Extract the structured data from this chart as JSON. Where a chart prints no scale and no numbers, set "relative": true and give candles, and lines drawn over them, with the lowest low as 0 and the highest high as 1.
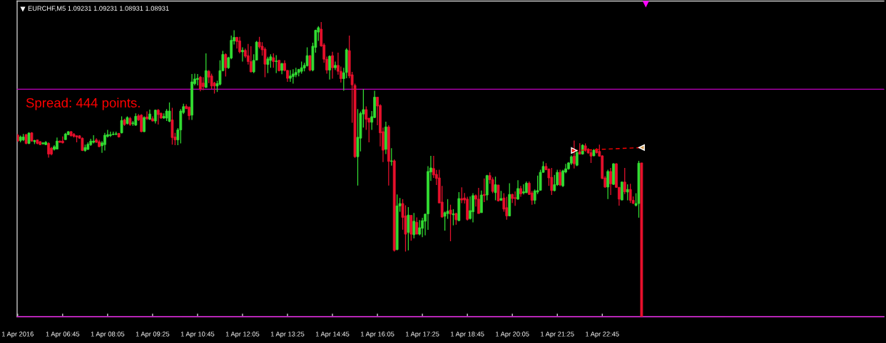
{
  "chart_data": {
    "type": "candlestick",
    "title": "EURCHF,M5 1.09231 1.09231 1.08931 1.08931",
    "relative": true,
    "tick_labels": "x",
    "annotations": [
      "Spread: 444 points."
    ],
    "xlim": [
      "2016-04-01T05:24",
      "2016-04-02T07:06"
    ],
    "xticks": [
      {
        "value": "2016-04-01T05:25",
        "label": "1 Apr 2016"
      },
      {
        "value": "2016-04-01T06:45",
        "label": "1 Apr 06:45"
      },
      {
        "value": "2016-04-01T08:05",
        "label": "1 Apr 08:05"
      },
      {
        "value": "2016-04-01T09:25",
        "label": "1 Apr 09:25"
      },
      {
        "value": "2016-04-01T10:45",
        "label": "1 Apr 10:45"
      },
      {
        "value": "2016-04-01T12:05",
        "label": "1 Apr 12:05"
      },
      {
        "value": "2016-04-01T13:25",
        "label": "1 Apr 13:25"
      },
      {
        "value": "2016-04-01T14:45",
        "label": "1 Apr 14:45"
      },
      {
        "value": "2016-04-01T16:05",
        "label": "1 Apr 16:05"
      },
      {
        "value": "2016-04-01T17:25",
        "label": "1 Apr 17:25"
      },
      {
        "value": "2016-04-01T18:45",
        "label": "1 Apr 18:45"
      },
      {
        "value": "2016-04-01T20:05",
        "label": "1 Apr 20:05"
      },
      {
        "value": "2016-04-01T21:25",
        "label": "1 Apr 21:25"
      },
      {
        "value": "2016-04-01T22:45",
        "label": "1 Apr 22:45"
      }
    ],
    "ref_lines": [
      {
        "axis": "y",
        "value": 0.772,
        "color": "#c000c0"
      },
      {
        "axis": "y",
        "value": 0,
        "color": "#c000c0"
      }
    ],
    "series": [
      {
        "type": "line",
        "x": [
          "2016-04-01T21:55",
          "2016-04-01T23:55"
        ],
        "values": [
          0.564,
          0.574
        ],
        "color": "#ff0000",
        "colors": [
          "#ff0000",
          "#d4a05a"
        ],
        "line_style": "dashed",
        "marker": "triangle"
      }
    ],
    "x": [
      "2016-04-01T05:25",
      "2016-04-01T05:30",
      "2016-04-01T05:35",
      "2016-04-01T05:40",
      "2016-04-01T05:45",
      "2016-04-01T05:50",
      "2016-04-01T05:55",
      "2016-04-01T06:00",
      "2016-04-01T06:05",
      "2016-04-01T06:10",
      "2016-04-01T06:15",
      "2016-04-01T06:20",
      "2016-04-01T06:25",
      "2016-04-01T06:30",
      "2016-04-01T06:35",
      "2016-04-01T06:40",
      "2016-04-01T06:45",
      "2016-04-01T06:50",
      "2016-04-01T06:55",
      "2016-04-01T07:00",
      "2016-04-01T07:05",
      "2016-04-01T07:10",
      "2016-04-01T07:15",
      "2016-04-01T07:20",
      "2016-04-01T07:25",
      "2016-04-01T07:30",
      "2016-04-01T07:35",
      "2016-04-01T07:40",
      "2016-04-01T07:45",
      "2016-04-01T07:50",
      "2016-04-01T07:55",
      "2016-04-01T08:00",
      "2016-04-01T08:05",
      "2016-04-01T08:10",
      "2016-04-01T08:15",
      "2016-04-01T08:20",
      "2016-04-01T08:25",
      "2016-04-01T08:30",
      "2016-04-01T08:35",
      "2016-04-01T08:40",
      "2016-04-01T08:45",
      "2016-04-01T08:50",
      "2016-04-01T08:55",
      "2016-04-01T09:00",
      "2016-04-01T09:05",
      "2016-04-01T09:10",
      "2016-04-01T09:15",
      "2016-04-01T09:20",
      "2016-04-01T09:25",
      "2016-04-01T09:30",
      "2016-04-01T09:35",
      "2016-04-01T09:40",
      "2016-04-01T09:45",
      "2016-04-01T09:50",
      "2016-04-01T09:55",
      "2016-04-01T10:00",
      "2016-04-01T10:05",
      "2016-04-01T10:10",
      "2016-04-01T10:15",
      "2016-04-01T10:20",
      "2016-04-01T10:25",
      "2016-04-01T10:30",
      "2016-04-01T10:35",
      "2016-04-01T10:40",
      "2016-04-01T10:45",
      "2016-04-01T10:50",
      "2016-04-01T10:55",
      "2016-04-01T11:00",
      "2016-04-01T11:05",
      "2016-04-01T11:10",
      "2016-04-01T11:15",
      "2016-04-01T11:20",
      "2016-04-01T11:25",
      "2016-04-01T11:30",
      "2016-04-01T11:35",
      "2016-04-01T11:40",
      "2016-04-01T11:45",
      "2016-04-01T11:50",
      "2016-04-01T11:55",
      "2016-04-01T12:00",
      "2016-04-01T12:05",
      "2016-04-01T12:10",
      "2016-04-01T12:15",
      "2016-04-01T12:20",
      "2016-04-01T12:25",
      "2016-04-01T12:30",
      "2016-04-01T12:35",
      "2016-04-01T12:40",
      "2016-04-01T12:45",
      "2016-04-01T12:50",
      "2016-04-01T12:55",
      "2016-04-01T13:00",
      "2016-04-01T13:05",
      "2016-04-01T13:10",
      "2016-04-01T13:15",
      "2016-04-01T13:20",
      "2016-04-01T13:25",
      "2016-04-01T13:30",
      "2016-04-01T13:35",
      "2016-04-01T13:40",
      "2016-04-01T13:45",
      "2016-04-01T13:50",
      "2016-04-01T13:55",
      "2016-04-01T14:00",
      "2016-04-01T14:05",
      "2016-04-01T14:10",
      "2016-04-01T14:15",
      "2016-04-01T14:20",
      "2016-04-01T14:25",
      "2016-04-01T14:30",
      "2016-04-01T14:35",
      "2016-04-01T14:40",
      "2016-04-01T14:45",
      "2016-04-01T14:50",
      "2016-04-01T14:55",
      "2016-04-01T15:00",
      "2016-04-01T15:05",
      "2016-04-01T15:10",
      "2016-04-01T15:15",
      "2016-04-01T15:20",
      "2016-04-01T15:25",
      "2016-04-01T15:30",
      "2016-04-01T15:35",
      "2016-04-01T15:40",
      "2016-04-01T15:45",
      "2016-04-01T15:50",
      "2016-04-01T15:55",
      "2016-04-01T16:00",
      "2016-04-01T16:05",
      "2016-04-01T16:10",
      "2016-04-01T16:15",
      "2016-04-01T16:20",
      "2016-04-01T16:25",
      "2016-04-01T16:30",
      "2016-04-01T16:35",
      "2016-04-01T16:40",
      "2016-04-01T16:45",
      "2016-04-01T16:50",
      "2016-04-01T16:55",
      "2016-04-01T17:00",
      "2016-04-01T17:05",
      "2016-04-01T17:10",
      "2016-04-01T17:15",
      "2016-04-01T17:20",
      "2016-04-01T17:25",
      "2016-04-01T17:30",
      "2016-04-01T17:35",
      "2016-04-01T17:40",
      "2016-04-01T17:45",
      "2016-04-01T17:50",
      "2016-04-01T17:55",
      "2016-04-01T18:00",
      "2016-04-01T18:05",
      "2016-04-01T18:10",
      "2016-04-01T18:15",
      "2016-04-01T18:20",
      "2016-04-01T18:25",
      "2016-04-01T18:30",
      "2016-04-01T18:35",
      "2016-04-01T18:40",
      "2016-04-01T18:45",
      "2016-04-01T18:50",
      "2016-04-01T18:55",
      "2016-04-01T19:00",
      "2016-04-01T19:05",
      "2016-04-01T19:10",
      "2016-04-01T19:15",
      "2016-04-01T19:20",
      "2016-04-01T19:25",
      "2016-04-01T19:30",
      "2016-04-01T19:35",
      "2016-04-01T19:40",
      "2016-04-01T19:45",
      "2016-04-01T19:50",
      "2016-04-01T19:55",
      "2016-04-01T20:00",
      "2016-04-01T20:05",
      "2016-04-01T20:10",
      "2016-04-01T20:15",
      "2016-04-01T20:20",
      "2016-04-01T20:25",
      "2016-04-01T20:30",
      "2016-04-01T20:35",
      "2016-04-01T20:40",
      "2016-04-01T20:45",
      "2016-04-01T20:50",
      "2016-04-01T20:55",
      "2016-04-01T21:00",
      "2016-04-01T21:05",
      "2016-04-01T21:10",
      "2016-04-01T21:15",
      "2016-04-01T21:20",
      "2016-04-01T21:25",
      "2016-04-01T21:30",
      "2016-04-01T21:35",
      "2016-04-01T21:40",
      "2016-04-01T21:45",
      "2016-04-01T21:50",
      "2016-04-01T21:55",
      "2016-04-01T22:00",
      "2016-04-01T22:05",
      "2016-04-01T22:10",
      "2016-04-01T22:15",
      "2016-04-01T22:20",
      "2016-04-01T22:25",
      "2016-04-01T22:30",
      "2016-04-01T22:35",
      "2016-04-01T22:40",
      "2016-04-01T22:45",
      "2016-04-01T22:50",
      "2016-04-01T22:55",
      "2016-04-01T23:00",
      "2016-04-01T23:05",
      "2016-04-01T23:10",
      "2016-04-01T23:15",
      "2016-04-01T23:20",
      "2016-04-01T23:25",
      "2016-04-01T23:30",
      "2016-04-01T23:35",
      "2016-04-01T23:40",
      "2016-04-01T23:45",
      "2016-04-01T23:50",
      "2016-04-01T23:55"
    ],
    "ohlc": [
      [
        0.616,
        0.62,
        0.594,
        0.596
      ],
      [
        0.598,
        0.615,
        0.592,
        0.61
      ],
      [
        0.6,
        0.62,
        0.596,
        0.61
      ],
      [
        0.618,
        0.62,
        0.585,
        0.588
      ],
      [
        0.588,
        0.626,
        0.586,
        0.623
      ],
      [
        0.624,
        0.626,
        0.594,
        0.596
      ],
      [
        0.594,
        0.6,
        0.586,
        0.598
      ],
      [
        0.6,
        0.601,
        0.585,
        0.588
      ],
      [
        0.594,
        0.596,
        0.582,
        0.584
      ],
      [
        0.587,
        0.592,
        0.584,
        0.59
      ],
      [
        0.584,
        0.596,
        0.582,
        0.592
      ],
      [
        0.588,
        0.592,
        0.54,
        0.552
      ],
      [
        0.572,
        0.576,
        0.548,
        0.552
      ],
      [
        0.568,
        0.582,
        0.564,
        0.577
      ],
      [
        0.569,
        0.608,
        0.568,
        0.596
      ],
      [
        0.596,
        0.598,
        0.59,
        0.592
      ],
      [
        0.596,
        0.612,
        0.588,
        0.59
      ],
      [
        0.601,
        0.624,
        0.6,
        0.62
      ],
      [
        0.618,
        0.63,
        0.616,
        0.628
      ],
      [
        0.628,
        0.63,
        0.612,
        0.614
      ],
      [
        0.619,
        0.623,
        0.608,
        0.612
      ],
      [
        0.614,
        0.615,
        0.592,
        0.61
      ],
      [
        0.614,
        0.616,
        0.604,
        0.606
      ],
      [
        0.606,
        0.608,
        0.562,
        0.564
      ],
      [
        0.564,
        0.584,
        0.56,
        0.574
      ],
      [
        0.568,
        0.592,
        0.566,
        0.585
      ],
      [
        0.584,
        0.604,
        0.58,
        0.596
      ],
      [
        0.592,
        0.616,
        0.588,
        0.596
      ],
      [
        0.6,
        0.606,
        0.59,
        0.592
      ],
      [
        0.594,
        0.6,
        0.576,
        0.577
      ],
      [
        0.58,
        0.596,
        0.556,
        0.59
      ],
      [
        0.584,
        0.624,
        0.564,
        0.616
      ],
      [
        0.612,
        0.634,
        0.608,
        0.618
      ],
      [
        0.615,
        0.628,
        0.61,
        0.618
      ],
      [
        0.618,
        0.628,
        0.616,
        0.62
      ],
      [
        0.619,
        0.628,
        0.616,
        0.621
      ],
      [
        0.622,
        0.624,
        0.608,
        0.61
      ],
      [
        0.624,
        0.68,
        0.622,
        0.666
      ],
      [
        0.668,
        0.672,
        0.648,
        0.652
      ],
      [
        0.656,
        0.68,
        0.652,
        0.676
      ],
      [
        0.673,
        0.678,
        0.648,
        0.652
      ],
      [
        0.655,
        0.664,
        0.648,
        0.658
      ],
      [
        0.65,
        0.69,
        0.648,
        0.68
      ],
      [
        0.682,
        0.688,
        0.664,
        0.668
      ],
      [
        0.684,
        0.687,
        0.626,
        0.628
      ],
      [
        0.628,
        0.68,
        0.626,
        0.676
      ],
      [
        0.678,
        0.697,
        0.668,
        0.672
      ],
      [
        0.67,
        0.703,
        0.668,
        0.688
      ],
      [
        0.672,
        0.68,
        0.663,
        0.664
      ],
      [
        0.664,
        0.703,
        0.656,
        0.701
      ],
      [
        0.701,
        0.705,
        0.652,
        0.686
      ],
      [
        0.69,
        0.693,
        0.672,
        0.674
      ],
      [
        0.674,
        0.69,
        0.672,
        0.68
      ],
      [
        0.674,
        0.705,
        0.664,
        0.698
      ],
      [
        0.663,
        0.727,
        0.66,
        0.698
      ],
      [
        0.668,
        0.709,
        0.584,
        0.608
      ],
      [
        0.61,
        0.624,
        0.582,
        0.6
      ],
      [
        0.6,
        0.64,
        0.582,
        0.634
      ],
      [
        0.634,
        0.705,
        0.588,
        0.698
      ],
      [
        0.693,
        0.723,
        0.688,
        0.713
      ],
      [
        0.714,
        0.721,
        0.705,
        0.706
      ],
      [
        0.711,
        0.714,
        0.668,
        0.682
      ],
      [
        0.684,
        0.824,
        0.668,
        0.797
      ],
      [
        0.791,
        0.825,
        0.785,
        0.807
      ],
      [
        0.805,
        0.824,
        0.785,
        0.809
      ],
      [
        0.813,
        0.817,
        0.765,
        0.773
      ],
      [
        0.793,
        0.813,
        0.769,
        0.781
      ],
      [
        0.778,
        0.894,
        0.777,
        0.835
      ],
      [
        0.833,
        0.837,
        0.793,
        0.813
      ],
      [
        0.817,
        0.825,
        0.773,
        0.783
      ],
      [
        0.793,
        0.797,
        0.757,
        0.783
      ],
      [
        0.783,
        0.801,
        0.763,
        0.791
      ],
      [
        0.789,
        0.87,
        0.785,
        0.835
      ],
      [
        0.835,
        0.902,
        0.833,
        0.89
      ],
      [
        0.89,
        0.894,
        0.815,
        0.845
      ],
      [
        0.845,
        0.882,
        0.841,
        0.879
      ],
      [
        0.878,
        0.954,
        0.874,
        0.938
      ],
      [
        0.936,
        0.972,
        0.924,
        0.948
      ],
      [
        0.948,
        0.95,
        0.91,
        0.934
      ],
      [
        0.936,
        0.95,
        0.894,
        0.899
      ],
      [
        0.899,
        0.914,
        0.866,
        0.904
      ],
      [
        0.904,
        0.91,
        0.878,
        0.884
      ],
      [
        0.886,
        0.926,
        0.856,
        0.866
      ],
      [
        0.866,
        0.918,
        0.829,
        0.831
      ],
      [
        0.831,
        0.891,
        0.827,
        0.87
      ],
      [
        0.871,
        0.936,
        0.87,
        0.932
      ],
      [
        0.932,
        0.95,
        0.91,
        0.916
      ],
      [
        0.918,
        0.932,
        0.886,
        0.906
      ],
      [
        0.908,
        0.914,
        0.813,
        0.857
      ],
      [
        0.856,
        0.882,
        0.827,
        0.875
      ],
      [
        0.87,
        0.891,
        0.845,
        0.882
      ],
      [
        0.879,
        0.894,
        0.845,
        0.866
      ],
      [
        0.866,
        0.888,
        0.827,
        0.868
      ],
      [
        0.87,
        0.872,
        0.833,
        0.835
      ],
      [
        0.836,
        0.862,
        0.823,
        0.859
      ],
      [
        0.86,
        0.87,
        0.833,
        0.836
      ],
      [
        0.836,
        0.837,
        0.797,
        0.809
      ],
      [
        0.809,
        0.837,
        0.797,
        0.817
      ],
      [
        0.815,
        0.84,
        0.791,
        0.824
      ],
      [
        0.821,
        0.845,
        0.813,
        0.829
      ],
      [
        0.829,
        0.841,
        0.816,
        0.839
      ],
      [
        0.833,
        0.866,
        0.825,
        0.845
      ],
      [
        0.844,
        0.862,
        0.833,
        0.853
      ],
      [
        0.852,
        0.914,
        0.849,
        0.886
      ],
      [
        0.886,
        0.888,
        0.833,
        0.837
      ],
      [
        0.837,
        0.93,
        0.833,
        0.918
      ],
      [
        0.914,
        0.974,
        0.896,
        0.972
      ],
      [
        0.966,
        0.986,
        0.936,
        0.981
      ],
      [
        0.976,
        1,
        0.916,
        0.919
      ],
      [
        0.922,
        0.928,
        0.862,
        0.874
      ],
      [
        0.874,
        0.883,
        0.825,
        0.837
      ],
      [
        0.837,
        0.887,
        0.805,
        0.884
      ],
      [
        0.886,
        0.899,
        0.808,
        0.845
      ],
      [
        0.845,
        0.866,
        0.837,
        0.853
      ],
      [
        0.853,
        0.896,
        0.821,
        0.833
      ],
      [
        0.833,
        0.849,
        0.795,
        0.808
      ],
      [
        0.808,
        0.845,
        0.767,
        0.828
      ],
      [
        0.829,
        0.911,
        0.809,
        0.906
      ],
      [
        0.903,
        0.954,
        0.809,
        0.817
      ],
      [
        0.821,
        0.831,
        0.658,
        0.787
      ],
      [
        0.785,
        0.791,
        0.539,
        0.543
      ],
      [
        0.543,
        0.705,
        0.445,
        0.609
      ],
      [
        0.606,
        0.696,
        0.561,
        0.69
      ],
      [
        0.688,
        0.773,
        0.642,
        0.703
      ],
      [
        0.703,
        0.714,
        0.634,
        0.67
      ],
      [
        0.674,
        0.674,
        0.592,
        0.66
      ],
      [
        0.66,
        0.698,
        0.634,
        0.679
      ],
      [
        0.676,
        0.767,
        0.674,
        0.745
      ],
      [
        0.745,
        0.745,
        0.65,
        0.715
      ],
      [
        0.717,
        0.721,
        0.578,
        0.624
      ],
      [
        0.628,
        0.642,
        0.525,
        0.565
      ],
      [
        0.568,
        0.662,
        0.552,
        0.644
      ],
      [
        0.644,
        0.65,
        0.445,
        0.527
      ],
      [
        0.527,
        0.572,
        0.513,
        0.529
      ],
      [
        0.529,
        0.534,
        0.221,
        0.225
      ],
      [
        0.228,
        0.415,
        0.225,
        0.376
      ],
      [
        0.376,
        0.403,
        0.356,
        0.384
      ],
      [
        0.384,
        0.399,
        0.295,
        0.337
      ],
      [
        0.342,
        0.378,
        0.221,
        0.28
      ],
      [
        0.286,
        0.372,
        0.225,
        0.345
      ],
      [
        0.344,
        0.344,
        0.258,
        0.28
      ],
      [
        0.278,
        0.352,
        0.266,
        0.324
      ],
      [
        0.32,
        0.337,
        0.28,
        0.28
      ],
      [
        0.28,
        0.328,
        0.276,
        0.302
      ],
      [
        0.3,
        0.336,
        0.27,
        0.326
      ],
      [
        0.324,
        0.35,
        0.276,
        0.348
      ],
      [
        0.349,
        0.511,
        0.295,
        0.493
      ],
      [
        0.491,
        0.546,
        0.461,
        0.505
      ],
      [
        0.503,
        0.546,
        0.471,
        0.481
      ],
      [
        0.483,
        0.498,
        0.447,
        0.469
      ],
      [
        0.471,
        0.499,
        0.385,
        0.386
      ],
      [
        0.389,
        0.444,
        0.337,
        0.338
      ],
      [
        0.341,
        0.357,
        0.292,
        0.353
      ],
      [
        0.35,
        0.399,
        0.332,
        0.358
      ],
      [
        0.362,
        0.38,
        0.256,
        0.348
      ],
      [
        0.346,
        0.365,
        0.31,
        0.349
      ],
      [
        0.35,
        0.353,
        0.312,
        0.329
      ],
      [
        0.326,
        0.423,
        0.324,
        0.401
      ],
      [
        0.401,
        0.439,
        0.385,
        0.396
      ],
      [
        0.403,
        0.42,
        0.384,
        0.396
      ],
      [
        0.399,
        0.407,
        0.326,
        0.33
      ],
      [
        0.333,
        0.408,
        0.33,
        0.36
      ],
      [
        0.356,
        0.419,
        0.32,
        0.411
      ],
      [
        0.411,
        0.415,
        0.374,
        0.399
      ],
      [
        0.399,
        0.437,
        0.35,
        0.35
      ],
      [
        0.353,
        0.428,
        0.353,
        0.413
      ],
      [
        0.415,
        0.469,
        0.389,
        0.411
      ],
      [
        0.413,
        0.481,
        0.395,
        0.479
      ],
      [
        0.479,
        0.49,
        0.451,
        0.465
      ],
      [
        0.465,
        0.473,
        0.419,
        0.425
      ],
      [
        0.421,
        0.475,
        0.395,
        0.448
      ],
      [
        0.447,
        0.447,
        0.391,
        0.393
      ],
      [
        0.395,
        0.427,
        0.393,
        0.401
      ],
      [
        0.403,
        0.419,
        0.356,
        0.365
      ],
      [
        0.37,
        0.407,
        0.329,
        0.342
      ],
      [
        0.342,
        0.453,
        0.341,
        0.415
      ],
      [
        0.415,
        0.417,
        0.386,
        0.401
      ],
      [
        0.404,
        0.425,
        0.376,
        0.401
      ],
      [
        0.399,
        0.463,
        0.397,
        0.435
      ],
      [
        0.435,
        0.444,
        0.407,
        0.417
      ],
      [
        0.42,
        0.449,
        0.415,
        0.424
      ],
      [
        0.421,
        0.459,
        0.419,
        0.453
      ],
      [
        0.453,
        0.459,
        0.413,
        0.415
      ],
      [
        0.42,
        0.427,
        0.38,
        0.395
      ],
      [
        0.395,
        0.432,
        0.382,
        0.427
      ],
      [
        0.423,
        0.479,
        0.416,
        0.428
      ],
      [
        0.429,
        0.499,
        0.428,
        0.49
      ],
      [
        0.49,
        0.527,
        0.489,
        0.51
      ],
      [
        0.51,
        0.521,
        0.497,
        0.499
      ],
      [
        0.501,
        0.503,
        0.444,
        0.471
      ],
      [
        0.473,
        0.505,
        0.413,
        0.428
      ],
      [
        0.428,
        0.481,
        0.425,
        0.448
      ],
      [
        0.448,
        0.499,
        0.444,
        0.49
      ],
      [
        0.49,
        0.499,
        0.443,
        0.447
      ],
      [
        0.444,
        0.499,
        0.44,
        0.495
      ],
      [
        0.491,
        0.519,
        0.487,
        0.502
      ],
      [
        0.502,
        0.525,
        0.499,
        0.522
      ],
      [
        0.521,
        0.548,
        0.515,
        0.543
      ],
      [
        0.545,
        0.598,
        0.503,
        0.519
      ],
      [
        0.514,
        0.564,
        0.511,
        0.557
      ],
      [
        0.56,
        0.589,
        0.55,
        0.552
      ],
      [
        0.552,
        0.585,
        0.55,
        0.582
      ],
      [
        0.58,
        0.588,
        0.56,
        0.565
      ],
      [
        0.568,
        0.572,
        0.553,
        0.556
      ],
      [
        0.557,
        0.565,
        0.522,
        0.545
      ],
      [
        0.546,
        0.569,
        0.545,
        0.565
      ],
      [
        0.566,
        0.572,
        0.554,
        0.557
      ],
      [
        0.561,
        0.584,
        0.543,
        0.545
      ],
      [
        0.546,
        0.548,
        0.467,
        0.469
      ],
      [
        0.471,
        0.477,
        0.437,
        0.44
      ],
      [
        0.44,
        0.499,
        0.399,
        0.493
      ],
      [
        0.493,
        0.505,
        0.413,
        0.451
      ],
      [
        0.449,
        0.521,
        0.447,
        0.519
      ],
      [
        0.519,
        0.521,
        0.437,
        0.439
      ],
      [
        0.439,
        0.44,
        0.377,
        0.399
      ],
      [
        0.396,
        0.459,
        0.395,
        0.457
      ],
      [
        0.457,
        0.505,
        0.416,
        0.424
      ],
      [
        0.423,
        0.449,
        0.395,
        0.432
      ],
      [
        0.432,
        0.451,
        0.386,
        0.395
      ],
      [
        0.395,
        0.408,
        0.382,
        0.385
      ],
      [
        0.378,
        0.419,
        0.374,
        0.384
      ],
      [
        0.384,
        0.529,
        0.336,
        0.521
      ],
      [
        0.522,
        0.522,
        0,
        0
      ]
    ],
    "colors": [
      "#e8112d",
      "#33dd33",
      "#33dd33",
      "#e8112d",
      "#33dd33",
      "#e8112d",
      "#33dd33",
      "#e8112d",
      "#e8112d",
      "#33dd33",
      "#33dd33",
      "#e8112d",
      "#e8112d",
      "#33dd33",
      "#33dd33",
      "#e8112d",
      "#e8112d",
      "#33dd33",
      "#33dd33",
      "#e8112d",
      "#e8112d",
      "#e8112d",
      "#e8112d",
      "#e8112d",
      "#33dd33",
      "#33dd33",
      "#33dd33",
      "#33dd33",
      "#e8112d",
      "#e8112d",
      "#33dd33",
      "#33dd33",
      "#33dd33",
      "#33dd33",
      "#33dd33",
      "#33dd33",
      "#e8112d",
      "#33dd33",
      "#e8112d",
      "#33dd33",
      "#e8112d",
      "#33dd33",
      "#33dd33",
      "#e8112d",
      "#e8112d",
      "#33dd33",
      "#e8112d",
      "#33dd33",
      "#e8112d",
      "#33dd33",
      "#e8112d",
      "#e8112d",
      "#33dd33",
      "#33dd33",
      "#33dd33",
      "#e8112d",
      "#e8112d",
      "#33dd33",
      "#33dd33",
      "#33dd33",
      "#e8112d",
      "#e8112d",
      "#33dd33",
      "#33dd33",
      "#33dd33",
      "#e8112d",
      "#e8112d",
      "#33dd33",
      "#e8112d",
      "#e8112d",
      "#e8112d",
      "#33dd33",
      "#33dd33",
      "#33dd33",
      "#e8112d",
      "#33dd33",
      "#33dd33",
      "#33dd33",
      "#e8112d",
      "#e8112d",
      "#33dd33",
      "#e8112d",
      "#e8112d",
      "#e8112d",
      "#33dd33",
      "#33dd33",
      "#e8112d",
      "#e8112d",
      "#e8112d",
      "#33dd33",
      "#33dd33",
      "#e8112d",
      "#33dd33",
      "#e8112d",
      "#33dd33",
      "#e8112d",
      "#e8112d",
      "#33dd33",
      "#33dd33",
      "#33dd33",
      "#33dd33",
      "#33dd33",
      "#33dd33",
      "#33dd33",
      "#e8112d",
      "#33dd33",
      "#33dd33",
      "#33dd33",
      "#e8112d",
      "#e8112d",
      "#e8112d",
      "#33dd33",
      "#e8112d",
      "#33dd33",
      "#e8112d",
      "#e8112d",
      "#33dd33",
      "#33dd33",
      "#e8112d",
      "#e8112d",
      "#e8112d",
      "#33dd33",
      "#33dd33",
      "#33dd33",
      "#e8112d",
      "#e8112d",
      "#33dd33",
      "#33dd33",
      "#e8112d",
      "#e8112d",
      "#e8112d",
      "#33dd33",
      "#e8112d",
      "#33dd33",
      "#e8112d",
      "#33dd33",
      "#33dd33",
      "#e8112d",
      "#e8112d",
      "#33dd33",
      "#e8112d",
      "#33dd33",
      "#e8112d",
      "#33dd33",
      "#33dd33",
      "#33dd33",
      "#33dd33",
      "#33dd33",
      "#e8112d",
      "#e8112d",
      "#e8112d",
      "#e8112d",
      "#33dd33",
      "#33dd33",
      "#e8112d",
      "#33dd33",
      "#e8112d",
      "#33dd33",
      "#e8112d",
      "#e8112d",
      "#e8112d",
      "#33dd33",
      "#33dd33",
      "#e8112d",
      "#e8112d",
      "#33dd33",
      "#e8112d",
      "#33dd33",
      "#e8112d",
      "#e8112d",
      "#33dd33",
      "#e8112d",
      "#33dd33",
      "#e8112d",
      "#e8112d",
      "#33dd33",
      "#e8112d",
      "#e8112d",
      "#33dd33",
      "#e8112d",
      "#33dd33",
      "#33dd33",
      "#e8112d",
      "#e8112d",
      "#33dd33",
      "#33dd33",
      "#33dd33",
      "#33dd33",
      "#e8112d",
      "#e8112d",
      "#e8112d",
      "#33dd33",
      "#33dd33",
      "#e8112d",
      "#33dd33",
      "#33dd33",
      "#33dd33",
      "#33dd33",
      "#e8112d",
      "#33dd33",
      "#e8112d",
      "#33dd33",
      "#e8112d",
      "#e8112d",
      "#e8112d",
      "#33dd33",
      "#e8112d",
      "#e8112d",
      "#e8112d",
      "#e8112d",
      "#33dd33",
      "#e8112d",
      "#33dd33",
      "#e8112d",
      "#e8112d",
      "#33dd33",
      "#e8112d",
      "#33dd33",
      "#e8112d",
      "#e8112d",
      "#33dd33",
      "#33dd33",
      "#e8112d"
    ]
  }
}
